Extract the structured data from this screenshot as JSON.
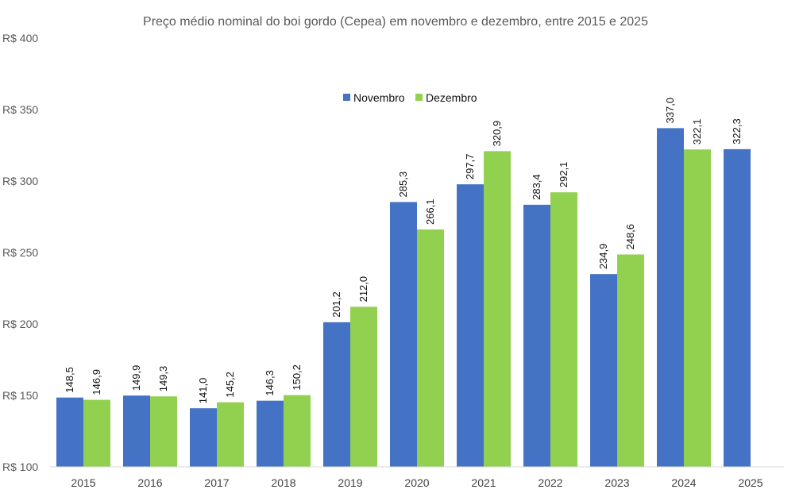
{
  "chart_data": {
    "type": "bar",
    "title": "Preço médio nominal do boi gordo (Cepea) em novembro e dezembro, entre 2015 e 2025",
    "xlabel": "",
    "ylabel": "",
    "ylim": [
      100,
      400
    ],
    "y_ticks": [
      100,
      150,
      200,
      250,
      300,
      350,
      400
    ],
    "y_tick_labels": [
      "R$ 100",
      "R$ 150",
      "R$ 200",
      "R$ 250",
      "R$ 300",
      "R$ 350",
      "R$ 400"
    ],
    "grid": false,
    "legend_position": "top-center",
    "categories": [
      "2015",
      "2016",
      "2017",
      "2018",
      "2019",
      "2020",
      "2021",
      "2022",
      "2023",
      "2024",
      "2025"
    ],
    "series": [
      {
        "name": "Novembro",
        "color": "#4472C4",
        "values": [
          148.5,
          149.9,
          141.0,
          146.3,
          201.2,
          285.3,
          297.7,
          283.4,
          234.9,
          337.0,
          322.3
        ],
        "labels": [
          "148,5",
          "149,9",
          "141,0",
          "146,3",
          "201,2",
          "285,3",
          "297,7",
          "283,4",
          "234,9",
          "337,0",
          "322,3"
        ]
      },
      {
        "name": "Dezembro",
        "color": "#92D050",
        "values": [
          146.9,
          149.3,
          145.2,
          150.2,
          212.0,
          266.1,
          320.9,
          292.1,
          248.6,
          322.1,
          null
        ],
        "labels": [
          "146,9",
          "149,3",
          "145,2",
          "150,2",
          "212,0",
          "266,1",
          "320,9",
          "292,1",
          "248,6",
          "322,1",
          null
        ]
      }
    ]
  }
}
